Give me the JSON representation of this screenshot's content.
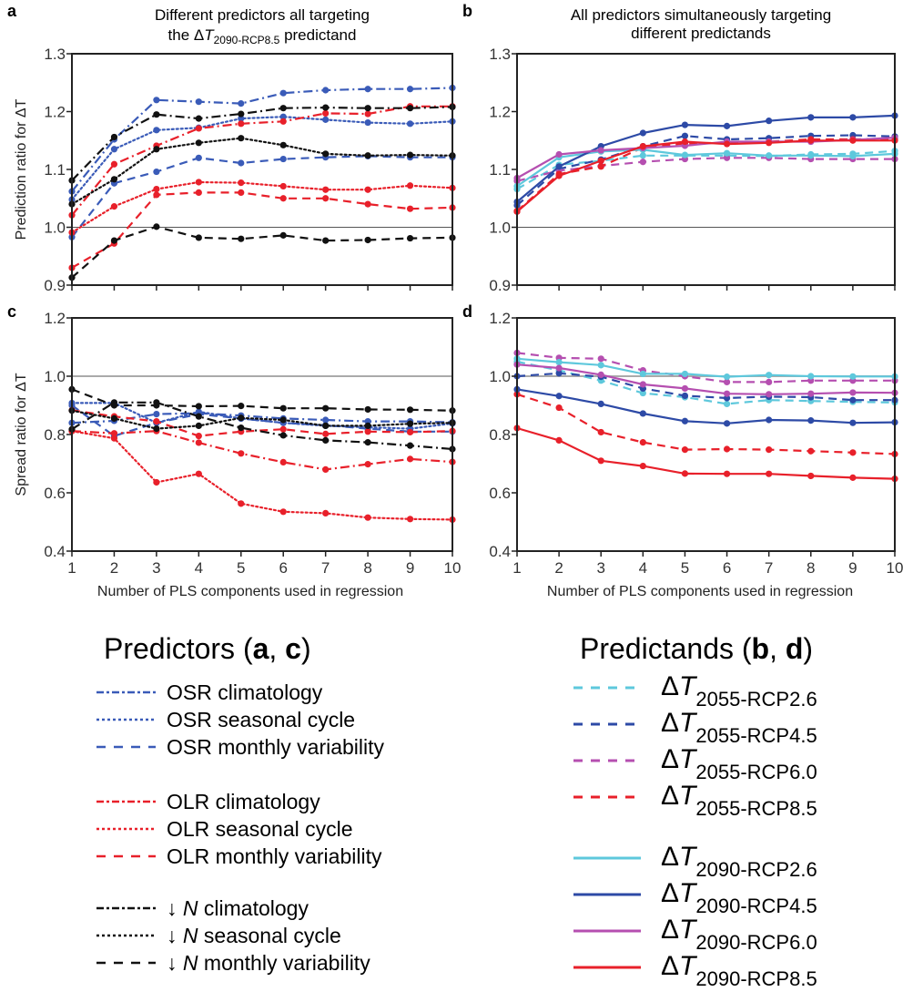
{
  "chart_data": [
    {
      "id": "a",
      "type": "line",
      "panel_letter": "a",
      "title_line1": "Different predictors all targeting",
      "title_line2_prefix": "the ",
      "title_line2_delta": "Δ",
      "title_line2_T": "T",
      "title_line2_sub": "2090-RCP8.5",
      "title_line2_suffix": " predictand",
      "ylabel": "Prediction ratio for ΔT",
      "xlabel": "",
      "ylim": [
        0.9,
        1.3
      ],
      "yticks": [
        "0.9",
        "1.0",
        "1.1",
        "1.2",
        "1.3"
      ],
      "ytick_values": [
        0.9,
        1.0,
        1.1,
        1.2,
        1.3
      ],
      "x": [
        1,
        2,
        3,
        4,
        5,
        6,
        7,
        8,
        9,
        10
      ],
      "xticks": [],
      "reference_line": 1.0,
      "series": [
        {
          "name": "OSR climatology",
          "color": "#3a5bb8",
          "dash": "dashdot",
          "values": [
            1.062,
            1.152,
            1.22,
            1.217,
            1.214,
            1.232,
            1.237,
            1.239,
            1.239,
            1.241
          ]
        },
        {
          "name": "OSR seasonal cycle",
          "color": "#3a5bb8",
          "dash": "dotted",
          "values": [
            1.048,
            1.135,
            1.168,
            1.172,
            1.188,
            1.191,
            1.186,
            1.181,
            1.179,
            1.183
          ]
        },
        {
          "name": "OSR monthly variability",
          "color": "#3a5bb8",
          "dash": "dashed",
          "values": [
            0.983,
            1.076,
            1.096,
            1.12,
            1.111,
            1.118,
            1.121,
            1.123,
            1.121,
            1.121
          ]
        },
        {
          "name": "OLR climatology",
          "color": "#e8202a",
          "dash": "dashdot",
          "values": [
            1.021,
            1.109,
            1.141,
            1.171,
            1.179,
            1.183,
            1.197,
            1.196,
            1.209,
            1.209
          ]
        },
        {
          "name": "OLR seasonal cycle",
          "color": "#e8202a",
          "dash": "dotted",
          "values": [
            0.991,
            1.036,
            1.066,
            1.078,
            1.077,
            1.071,
            1.065,
            1.065,
            1.072,
            1.068
          ]
        },
        {
          "name": "OLR monthly variability",
          "color": "#e8202a",
          "dash": "dashed",
          "values": [
            0.93,
            0.972,
            1.056,
            1.06,
            1.06,
            1.05,
            1.05,
            1.04,
            1.032,
            1.034
          ]
        },
        {
          "name": "↓N climatology",
          "color": "#111111",
          "dash": "dashdot",
          "values": [
            1.081,
            1.156,
            1.195,
            1.188,
            1.196,
            1.206,
            1.207,
            1.206,
            1.206,
            1.208
          ]
        },
        {
          "name": "↓N seasonal cycle",
          "color": "#111111",
          "dash": "dotted",
          "values": [
            1.04,
            1.083,
            1.135,
            1.146,
            1.154,
            1.142,
            1.127,
            1.124,
            1.125,
            1.124
          ]
        },
        {
          "name": "↓N monthly variability",
          "color": "#111111",
          "dash": "dashed",
          "values": [
            0.913,
            0.977,
            1.001,
            0.982,
            0.98,
            0.986,
            0.977,
            0.978,
            0.981,
            0.982
          ]
        }
      ]
    },
    {
      "id": "b",
      "type": "line",
      "panel_letter": "b",
      "title_line1": "All predictors simultaneously targeting",
      "title_line2": "different predictands",
      "ylabel": "",
      "xlabel": "",
      "ylim": [
        0.9,
        1.3
      ],
      "yticks": [
        "0.9",
        "1.0",
        "1.1",
        "1.2",
        "1.3"
      ],
      "ytick_values": [
        0.9,
        1.0,
        1.1,
        1.2,
        1.3
      ],
      "x": [
        1,
        2,
        3,
        4,
        5,
        6,
        7,
        8,
        9,
        10
      ],
      "xticks": [],
      "reference_line": 1.0,
      "series": [
        {
          "name": "ΔT 2055-RCP2.6",
          "color": "#5ec8dc",
          "dash": "dashed",
          "values": [
            1.066,
            1.108,
            1.115,
            1.124,
            1.124,
            1.124,
            1.123,
            1.126,
            1.127,
            1.132
          ]
        },
        {
          "name": "ΔT 2055-RCP4.5",
          "color": "#2d4aa6",
          "dash": "dashed",
          "values": [
            1.038,
            1.101,
            1.117,
            1.14,
            1.158,
            1.152,
            1.154,
            1.158,
            1.159,
            1.157
          ]
        },
        {
          "name": "ΔT 2055-RCP6.0",
          "color": "#b54fb0",
          "dash": "dashed",
          "values": [
            1.08,
            1.098,
            1.106,
            1.113,
            1.118,
            1.12,
            1.12,
            1.118,
            1.118,
            1.118
          ]
        },
        {
          "name": "ΔT 2055-RCP8.5",
          "color": "#e8202a",
          "dash": "dashed",
          "values": [
            1.028,
            1.092,
            1.105,
            1.138,
            1.145,
            1.146,
            1.148,
            1.152,
            1.152,
            1.153
          ]
        },
        {
          "name": "ΔT 2090-RCP2.6",
          "color": "#5ec8dc",
          "dash": "solid",
          "values": [
            1.071,
            1.121,
            1.131,
            1.134,
            1.125,
            1.128,
            1.124,
            1.124,
            1.123,
            1.127
          ]
        },
        {
          "name": "ΔT 2090-RCP4.5",
          "color": "#2d4aa6",
          "dash": "solid",
          "values": [
            1.044,
            1.105,
            1.14,
            1.163,
            1.177,
            1.175,
            1.184,
            1.19,
            1.19,
            1.193
          ]
        },
        {
          "name": "ΔT 2090-RCP6.0",
          "color": "#b54fb0",
          "dash": "solid",
          "values": [
            1.085,
            1.126,
            1.133,
            1.137,
            1.141,
            1.148,
            1.148,
            1.148,
            1.151,
            1.155
          ]
        },
        {
          "name": "ΔT 2090-RCP8.5",
          "color": "#e8202a",
          "dash": "solid",
          "values": [
            1.027,
            1.089,
            1.115,
            1.14,
            1.148,
            1.144,
            1.146,
            1.15,
            1.15,
            1.15
          ]
        }
      ]
    },
    {
      "id": "c",
      "type": "line",
      "panel_letter": "c",
      "ylabel": "Spread ratio for ΔT",
      "xlabel": "Number of PLS components used in regression",
      "ylim": [
        0.4,
        1.2
      ],
      "yticks": [
        "0.4",
        "0.6",
        "0.8",
        "1.0",
        "1.2"
      ],
      "ytick_values": [
        0.4,
        0.6,
        0.8,
        1.0,
        1.2
      ],
      "x": [
        1,
        2,
        3,
        4,
        5,
        6,
        7,
        8,
        9,
        10
      ],
      "xticks": [
        "1",
        "2",
        "3",
        "4",
        "5",
        "6",
        "7",
        "8",
        "9",
        "10"
      ],
      "reference_line": 1.0,
      "series": [
        {
          "name": "OSR climatology",
          "color": "#3a5bb8",
          "dash": "dashdot",
          "values": [
            0.84,
            0.847,
            0.87,
            0.873,
            0.865,
            0.855,
            0.85,
            0.845,
            0.845,
            0.842
          ]
        },
        {
          "name": "OSR seasonal cycle",
          "color": "#3a5bb8",
          "dash": "dotted",
          "values": [
            0.908,
            0.908,
            0.84,
            0.878,
            0.855,
            0.84,
            0.83,
            0.825,
            0.82,
            0.838
          ]
        },
        {
          "name": "OSR monthly variability",
          "color": "#3a5bb8",
          "dash": "dashed",
          "values": [
            0.9,
            0.795,
            0.84,
            0.87,
            0.855,
            0.84,
            0.832,
            0.82,
            0.81,
            0.81
          ]
        },
        {
          "name": "OLR climatology",
          "color": "#e8202a",
          "dash": "dashdot",
          "values": [
            0.812,
            0.804,
            0.812,
            0.772,
            0.735,
            0.705,
            0.68,
            0.698,
            0.716,
            0.706
          ]
        },
        {
          "name": "OLR seasonal cycle",
          "color": "#e8202a",
          "dash": "dotted",
          "values": [
            0.812,
            0.787,
            0.636,
            0.665,
            0.563,
            0.535,
            0.53,
            0.515,
            0.51,
            0.508
          ]
        },
        {
          "name": "OLR monthly variability",
          "color": "#e8202a",
          "dash": "dashed",
          "values": [
            0.883,
            0.862,
            0.845,
            0.795,
            0.81,
            0.818,
            0.802,
            0.81,
            0.808,
            0.812
          ]
        },
        {
          "name": "↓N climatology",
          "color": "#111111",
          "dash": "dashdot",
          "values": [
            0.818,
            0.91,
            0.91,
            0.862,
            0.823,
            0.797,
            0.78,
            0.773,
            0.762,
            0.75
          ]
        },
        {
          "name": "↓N seasonal cycle",
          "color": "#111111",
          "dash": "dotted",
          "values": [
            0.882,
            0.855,
            0.82,
            0.83,
            0.857,
            0.85,
            0.83,
            0.83,
            0.837,
            0.84
          ]
        },
        {
          "name": "↓N monthly variability",
          "color": "#111111",
          "dash": "dashed",
          "values": [
            0.955,
            0.9,
            0.9,
            0.897,
            0.898,
            0.89,
            0.89,
            0.886,
            0.885,
            0.882
          ]
        }
      ]
    },
    {
      "id": "d",
      "type": "line",
      "panel_letter": "d",
      "ylabel": "",
      "xlabel": "Number of PLS components used in regression",
      "ylim": [
        0.4,
        1.2
      ],
      "yticks": [
        "0.4",
        "0.6",
        "0.8",
        "1.0",
        "1.2"
      ],
      "ytick_values": [
        0.4,
        0.6,
        0.8,
        1.0,
        1.2
      ],
      "x": [
        1,
        2,
        3,
        4,
        5,
        6,
        7,
        8,
        9,
        10
      ],
      "xticks": [
        "1",
        "2",
        "3",
        "4",
        "5",
        "6",
        "7",
        "8",
        "9",
        "10"
      ],
      "reference_line": 1.0,
      "series": [
        {
          "name": "ΔT 2055-RCP2.6",
          "color": "#5ec8dc",
          "dash": "dashed",
          "values": [
            1.05,
            1.02,
            0.985,
            0.942,
            0.928,
            0.905,
            0.918,
            0.915,
            0.912,
            0.91
          ]
        },
        {
          "name": "ΔT 2055-RCP4.5",
          "color": "#2d4aa6",
          "dash": "dashed",
          "values": [
            1.0,
            1.01,
            0.998,
            0.958,
            0.933,
            0.925,
            0.93,
            0.928,
            0.918,
            0.918
          ]
        },
        {
          "name": "ΔT 2055-RCP6.0",
          "color": "#b54fb0",
          "dash": "dashed",
          "values": [
            1.08,
            1.063,
            1.06,
            1.02,
            1.0,
            0.98,
            0.98,
            0.985,
            0.985,
            0.985
          ]
        },
        {
          "name": "ΔT 2055-RCP8.5",
          "color": "#e8202a",
          "dash": "dashed",
          "values": [
            0.938,
            0.892,
            0.808,
            0.773,
            0.748,
            0.75,
            0.748,
            0.743,
            0.738,
            0.733
          ]
        },
        {
          "name": "ΔT 2090-RCP2.6",
          "color": "#5ec8dc",
          "dash": "solid",
          "values": [
            1.06,
            1.048,
            1.038,
            1.008,
            1.008,
            0.998,
            1.004,
            1.0,
            0.999,
            0.999
          ]
        },
        {
          "name": "ΔT 2090-RCP4.5",
          "color": "#2d4aa6",
          "dash": "solid",
          "values": [
            0.955,
            0.932,
            0.905,
            0.872,
            0.846,
            0.838,
            0.85,
            0.848,
            0.84,
            0.842
          ]
        },
        {
          "name": "ΔT 2090-RCP6.0",
          "color": "#b54fb0",
          "dash": "solid",
          "values": [
            1.04,
            1.028,
            1.005,
            0.972,
            0.958,
            0.94,
            0.938,
            0.94,
            0.944,
            0.943
          ]
        },
        {
          "name": "ΔT 2090-RCP8.5",
          "color": "#e8202a",
          "dash": "solid",
          "values": [
            0.822,
            0.78,
            0.71,
            0.692,
            0.666,
            0.665,
            0.665,
            0.658,
            0.652,
            0.648
          ]
        }
      ]
    }
  ],
  "legend_predictors": {
    "title_text": "Predictors (",
    "title_bold1": "a",
    "title_sep": ", ",
    "title_bold2": "c",
    "title_close": ")",
    "groups": [
      [
        {
          "label": "OSR climatology",
          "color": "#3a5bb8",
          "dash": "dashdot"
        },
        {
          "label": "OSR seasonal cycle",
          "color": "#3a5bb8",
          "dash": "dotted"
        },
        {
          "label": "OSR monthly variability",
          "color": "#3a5bb8",
          "dash": "dashed"
        }
      ],
      [
        {
          "label": "OLR climatology",
          "color": "#e8202a",
          "dash": "dashdot"
        },
        {
          "label": "OLR seasonal cycle",
          "color": "#e8202a",
          "dash": "dotted"
        },
        {
          "label": "OLR monthly variability",
          "color": "#e8202a",
          "dash": "dashed"
        }
      ],
      [
        {
          "arrow": "↓",
          "italic": "N",
          "label": " climatology",
          "color": "#111111",
          "dash": "dashdot"
        },
        {
          "arrow": "↓",
          "italic": "N",
          "label": " seasonal cycle",
          "color": "#111111",
          "dash": "dotted"
        },
        {
          "arrow": "↓",
          "italic": "N",
          "label": " monthly variability",
          "color": "#111111",
          "dash": "dashed"
        }
      ]
    ]
  },
  "legend_predictands": {
    "title_text": "Predictands (",
    "title_bold1": "b",
    "title_sep": ", ",
    "title_bold2": "d",
    "title_close": ")",
    "groups": [
      [
        {
          "delta": "Δ",
          "T": "T",
          "sub": "2055-RCP2.6",
          "color": "#5ec8dc",
          "dash": "dashed"
        },
        {
          "delta": "Δ",
          "T": "T",
          "sub": "2055-RCP4.5",
          "color": "#2d4aa6",
          "dash": "dashed"
        },
        {
          "delta": "Δ",
          "T": "T",
          "sub": "2055-RCP6.0",
          "color": "#b54fb0",
          "dash": "dashed"
        },
        {
          "delta": "Δ",
          "T": "T",
          "sub": "2055-RCP8.5",
          "color": "#e8202a",
          "dash": "dashed"
        }
      ],
      [
        {
          "delta": "Δ",
          "T": "T",
          "sub": "2090-RCP2.6",
          "color": "#5ec8dc",
          "dash": "solid"
        },
        {
          "delta": "Δ",
          "T": "T",
          "sub": "2090-RCP4.5",
          "color": "#2d4aa6",
          "dash": "solid"
        },
        {
          "delta": "Δ",
          "T": "T",
          "sub": "2090-RCP6.0",
          "color": "#b54fb0",
          "dash": "solid"
        },
        {
          "delta": "Δ",
          "T": "T",
          "sub": "2090-RCP8.5",
          "color": "#e8202a",
          "dash": "solid"
        }
      ]
    ]
  }
}
